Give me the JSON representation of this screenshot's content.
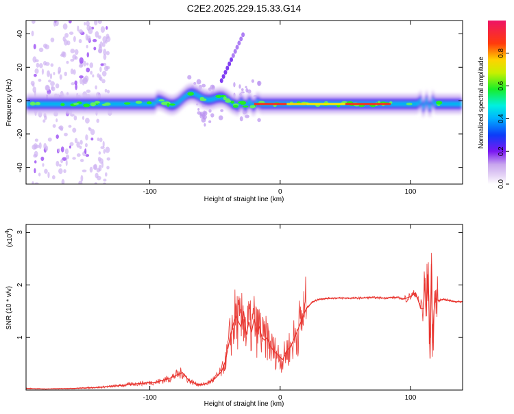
{
  "title": "C2E2.2025.229.15.33.G14",
  "chart_data": [
    {
      "type": "heatmap",
      "xlabel": "Height of straight line (km)",
      "ylabel": "Frequency (Hz)",
      "xlim": [
        -195,
        140
      ],
      "ylim": [
        -50,
        48
      ],
      "x_ticks": [
        -100,
        0,
        100
      ],
      "y_ticks": [
        40,
        20,
        0,
        -20,
        -40
      ],
      "colorbar": {
        "label": "Normalized spectral amplitude",
        "ticks": [
          "0.0",
          "0.2",
          "0.4",
          "0.6",
          "0.8"
        ],
        "range": [
          0,
          1
        ]
      }
    },
    {
      "type": "line",
      "xlabel": "Height of straight line (km)",
      "ylabel": "SNR (10 * v/v)",
      "multiplier_base": "(x10",
      "multiplier_exp": "4",
      "multiplier_close": ")",
      "xlim": [
        -195,
        140
      ],
      "ylim": [
        0,
        3.15
      ],
      "x_ticks": [
        -100,
        0,
        100
      ],
      "y_ticks": [
        1,
        2,
        3
      ],
      "color": "#e8302a",
      "x": [
        -195,
        -180,
        -160,
        -140,
        -125,
        -110,
        -95,
        -85,
        -80,
        -75,
        -70,
        -65,
        -60,
        -55,
        -50,
        -45,
        -42,
        -40,
        -38,
        -36,
        -34,
        -32,
        -30,
        -28,
        -26,
        -24,
        -22,
        -20,
        -18,
        -16,
        -14,
        -12,
        -10,
        -8,
        -6,
        -4,
        -2,
        0,
        2,
        5,
        8,
        12,
        16,
        20,
        25,
        30,
        40,
        50,
        60,
        70,
        80,
        85,
        90,
        95,
        100,
        104,
        106,
        108,
        110,
        111,
        112,
        113,
        114,
        115,
        116,
        117,
        118,
        119,
        120,
        122,
        125,
        130,
        135,
        140
      ],
      "y": [
        0.03,
        0.02,
        0.03,
        0.05,
        0.08,
        0.12,
        0.15,
        0.22,
        0.28,
        0.33,
        0.18,
        0.12,
        0.1,
        0.14,
        0.22,
        0.35,
        0.55,
        0.8,
        1.05,
        1.25,
        1.4,
        1.3,
        1.2,
        1.5,
        1.05,
        1.3,
        1.1,
        1.35,
        1.1,
        1.2,
        1.0,
        0.95,
        1.0,
        0.85,
        0.78,
        0.72,
        0.68,
        0.62,
        0.58,
        0.75,
        0.82,
        1.05,
        1.3,
        1.55,
        1.68,
        1.73,
        1.75,
        1.75,
        1.75,
        1.76,
        1.75,
        1.76,
        1.76,
        1.73,
        1.78,
        1.85,
        1.7,
        1.55,
        1.55,
        2.1,
        1.4,
        2.2,
        1.8,
        0.6,
        2.4,
        0.9,
        1.5,
        1.75,
        1.72,
        1.7,
        1.73,
        1.7,
        1.68,
        1.68
      ]
    }
  ]
}
